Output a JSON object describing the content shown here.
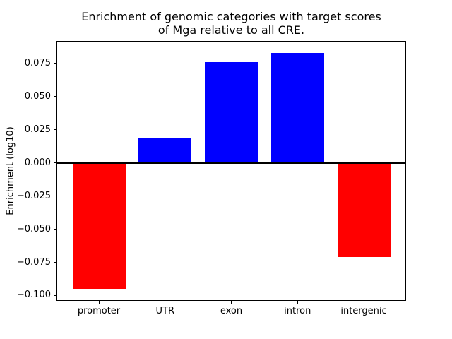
{
  "figure": {
    "background": "#ffffff",
    "title_line1": "Enrichment of genomic categories with target scores",
    "title_line2": "of Mga relative to all CRE.",
    "ylabel": "Enrichment (log10)"
  },
  "chart_data": {
    "type": "bar",
    "title": "Enrichment of genomic categories with target scores of Mga relative to all CRE.",
    "xlabel": "",
    "ylabel": "Enrichment (log10)",
    "categories": [
      "promoter",
      "UTR",
      "exon",
      "intron",
      "intergenic"
    ],
    "values": [
      -0.095,
      0.019,
      0.076,
      0.083,
      -0.071
    ],
    "bar_colors": [
      "#ff0000",
      "#0000ff",
      "#0000ff",
      "#0000ff",
      "#ff0000"
    ],
    "positive_color": "#0000ff",
    "negative_color": "#ff0000",
    "yticks": [
      0.075,
      0.05,
      0.025,
      0.0,
      -0.025,
      -0.05,
      -0.075,
      -0.1
    ],
    "ytick_labels": [
      "0.075",
      "0.050",
      "0.025",
      "0.000",
      "−0.025",
      "−0.050",
      "−0.075",
      "−0.100"
    ],
    "ylim": [
      -0.104,
      0.092
    ],
    "xlim": [
      -0.64,
      4.64
    ],
    "bar_width": 0.8,
    "zero_line": true,
    "zero_line_color": "#000000",
    "grid": false,
    "legend": null,
    "axis_color": "#000000"
  }
}
